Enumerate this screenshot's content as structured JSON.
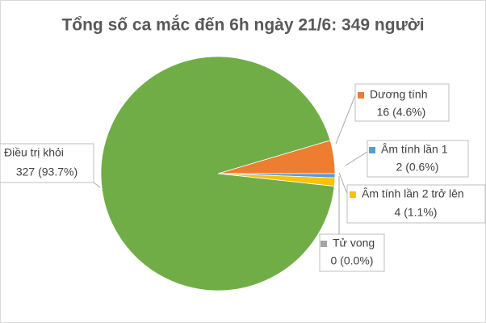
{
  "chart_data": {
    "type": "pie",
    "title": "Tổng số ca mắc đến 6h ngày 21/6: 349 người",
    "categories": [
      "Dương tính",
      "Âm tính lần 1",
      "Âm tính lần 2 trở lên",
      "Tử vong",
      "Điều trị khỏi"
    ],
    "values": [
      16,
      2,
      4,
      0,
      327
    ],
    "value_labels": [
      "16 (4.6%)",
      "2 (0.6%)",
      "4 (1.1%)",
      "0 (0.0%)",
      "327 (93.7%)"
    ],
    "colors": [
      "#ed7d31",
      "#5b9bd5",
      "#ffc000",
      "#a5a5a5",
      "#70ad47"
    ]
  }
}
